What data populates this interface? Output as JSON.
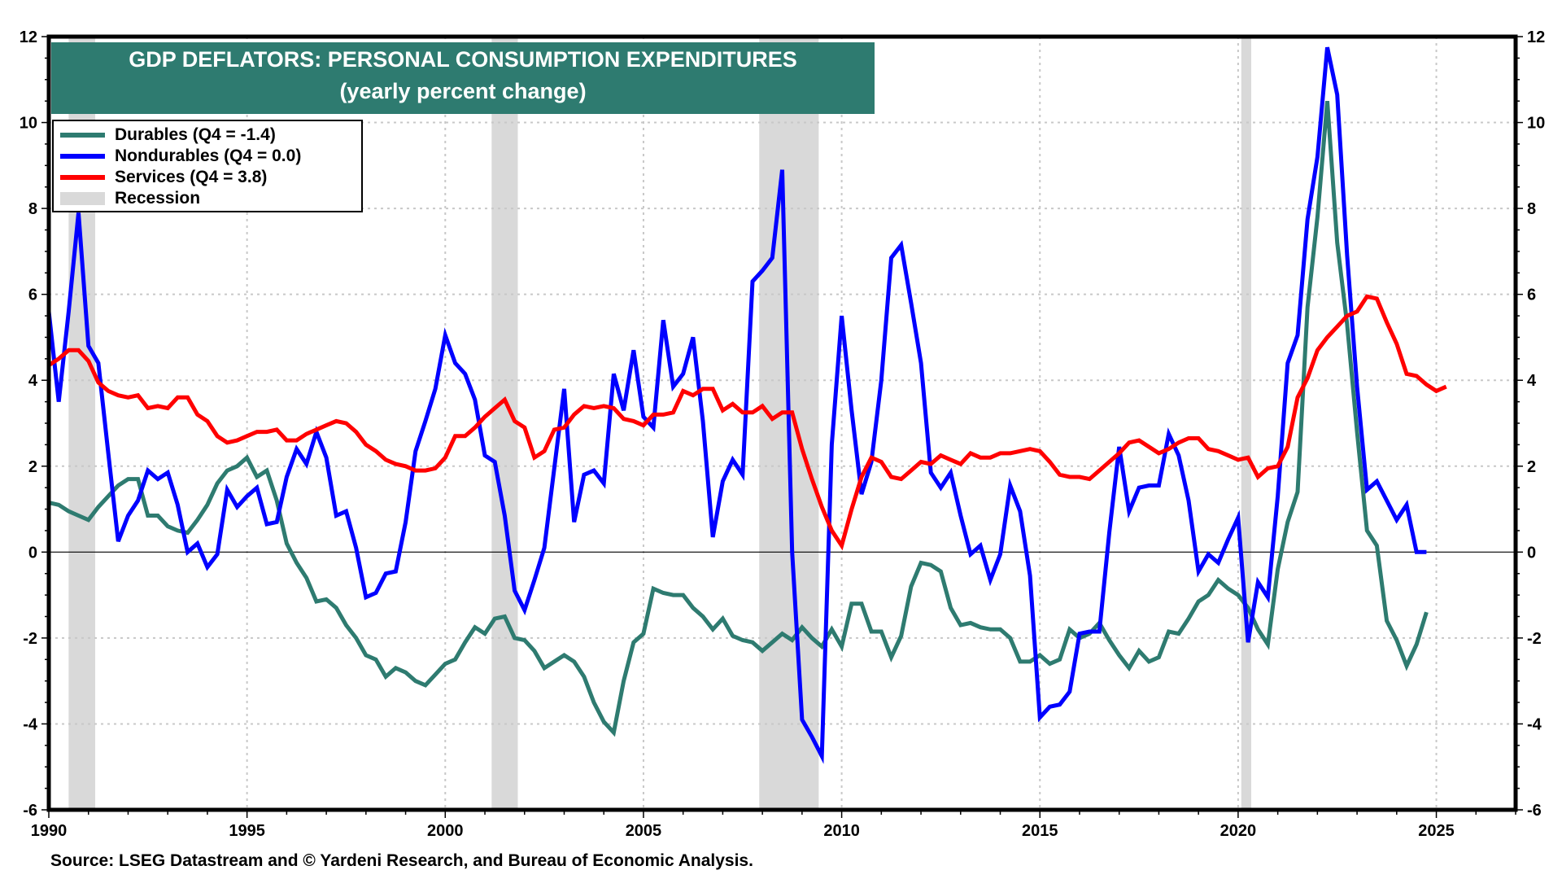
{
  "header": {
    "title": "GDP DEFLATORS: PERSONAL CONSUMPTION EXPENDITURES",
    "subtitle": "(yearly percent change)"
  },
  "legend": {
    "items": [
      {
        "label": "Durables  (Q4 = -1.4)",
        "color": "#2e7b70",
        "kind": "line"
      },
      {
        "label": "Nondurables  (Q4 = 0.0)",
        "color": "#0000ff",
        "kind": "line"
      },
      {
        "label": "Services (Q4 = 3.8)",
        "color": "#ff0000",
        "kind": "line"
      },
      {
        "label": "Recession",
        "color": "#d9d9d9",
        "kind": "band"
      }
    ]
  },
  "source": "Source: LSEG Datastream and © Yardeni Research, and Bureau of Economic Analysis.",
  "chart_data": {
    "type": "line",
    "title": "GDP DEFLATORS: PERSONAL CONSUMPTION EXPENDITURES",
    "subtitle": "(yearly percent change)",
    "xlabel": "",
    "ylabel": "",
    "frequency": "quarterly",
    "x_start": 1990.0,
    "x_step": 0.25,
    "xlim": [
      1990,
      2027
    ],
    "ylim": [
      -6,
      12
    ],
    "x_ticks": [
      1990,
      1995,
      2000,
      2005,
      2010,
      2015,
      2020,
      2025
    ],
    "x_tick_labels": [
      "1990",
      "1995",
      "2000",
      "2005",
      "2010",
      "2015",
      "2020",
      "2025"
    ],
    "y_ticks": [
      -6,
      -4,
      -2,
      0,
      2,
      4,
      6,
      8,
      10,
      12
    ],
    "y_tick_labels": [
      "-6",
      "-4",
      "-2",
      "0",
      "2",
      "4",
      "6",
      "8",
      "10",
      "12"
    ],
    "grid": true,
    "legend_position": "top-left",
    "recessions": [
      [
        1990.5,
        1991.17
      ],
      [
        2001.17,
        2001.83
      ],
      [
        2007.92,
        2009.42
      ],
      [
        2020.08,
        2020.33
      ]
    ],
    "series": [
      {
        "name": "Durables",
        "legend": "Durables  (Q4 = -1.4)",
        "color": "#2e7b70",
        "values": [
          1.15,
          1.1,
          0.95,
          0.85,
          0.75,
          1.05,
          1.3,
          1.55,
          1.7,
          1.7,
          0.85,
          0.85,
          0.6,
          0.5,
          0.45,
          0.75,
          1.1,
          1.6,
          1.9,
          2.0,
          2.2,
          1.75,
          1.9,
          1.2,
          0.2,
          -0.25,
          -0.6,
          -1.15,
          -1.1,
          -1.3,
          -1.7,
          -2.0,
          -2.4,
          -2.5,
          -2.9,
          -2.7,
          -2.8,
          -3.0,
          -3.1,
          -2.85,
          -2.6,
          -2.5,
          -2.1,
          -1.75,
          -1.9,
          -1.55,
          -1.5,
          -2.0,
          -2.05,
          -2.3,
          -2.7,
          -2.55,
          -2.4,
          -2.55,
          -2.9,
          -3.5,
          -3.95,
          -4.2,
          -3.0,
          -2.1,
          -1.9,
          -0.85,
          -0.95,
          -1.0,
          -1.0,
          -1.3,
          -1.5,
          -1.8,
          -1.55,
          -1.95,
          -2.05,
          -2.1,
          -2.3,
          -2.1,
          -1.9,
          -2.05,
          -1.75,
          -2.0,
          -2.2,
          -1.8,
          -2.2,
          -1.2,
          -1.2,
          -1.85,
          -1.85,
          -2.45,
          -1.95,
          -0.8,
          -0.25,
          -0.3,
          -0.45,
          -1.3,
          -1.7,
          -1.65,
          -1.75,
          -1.8,
          -1.8,
          -2.0,
          -2.55,
          -2.55,
          -2.4,
          -2.6,
          -2.5,
          -1.8,
          -2.0,
          -1.9,
          -1.65,
          -2.05,
          -2.4,
          -2.7,
          -2.3,
          -2.55,
          -2.45,
          -1.85,
          -1.9,
          -1.55,
          -1.15,
          -1.0,
          -0.65,
          -0.85,
          -1.0,
          -1.3,
          -1.8,
          -2.15,
          -0.4,
          0.7,
          1.4,
          5.7,
          7.8,
          10.5,
          7.2,
          5.3,
          2.8,
          0.5,
          0.15,
          -1.6,
          -2.05,
          -2.65,
          -2.15,
          -1.4
        ]
      },
      {
        "name": "Nondurables",
        "legend": "Nondurables  (Q4 = 0.0)",
        "color": "#0000ff",
        "values": [
          5.6,
          3.5,
          5.6,
          7.9,
          4.8,
          4.4,
          2.3,
          0.25,
          0.85,
          1.2,
          1.9,
          1.7,
          1.85,
          1.1,
          0.0,
          0.2,
          -0.35,
          -0.05,
          1.45,
          1.05,
          1.3,
          1.5,
          0.65,
          0.7,
          1.75,
          2.4,
          2.05,
          2.8,
          2.2,
          0.85,
          0.95,
          0.1,
          -1.05,
          -0.95,
          -0.5,
          -0.45,
          0.7,
          2.35,
          3.05,
          3.8,
          5.05,
          4.4,
          4.15,
          3.55,
          2.25,
          2.1,
          0.85,
          -0.9,
          -1.35,
          -0.65,
          0.1,
          1.95,
          3.8,
          0.7,
          1.8,
          1.9,
          1.6,
          4.15,
          3.3,
          4.7,
          3.15,
          2.9,
          5.4,
          3.85,
          4.15,
          5.0,
          3.05,
          0.35,
          1.65,
          2.15,
          1.8,
          6.3,
          6.55,
          6.85,
          8.9,
          0.0,
          -3.9,
          -4.3,
          -4.75,
          2.5,
          5.5,
          3.3,
          1.35,
          2.1,
          4.0,
          6.85,
          7.15,
          5.8,
          4.4,
          1.85,
          1.5,
          1.85,
          0.85,
          -0.05,
          0.15,
          -0.65,
          -0.05,
          1.55,
          0.95,
          -0.55,
          -3.85,
          -3.6,
          -3.55,
          -3.25,
          -1.9,
          -1.85,
          -1.85,
          0.45,
          2.45,
          0.95,
          1.5,
          1.55,
          1.55,
          2.75,
          2.25,
          1.2,
          -0.45,
          -0.05,
          -0.25,
          0.3,
          0.8,
          -2.1,
          -0.7,
          -1.05,
          1.3,
          4.4,
          5.05,
          7.75,
          9.2,
          11.75,
          10.65,
          6.9,
          3.85,
          1.45,
          1.65,
          1.2,
          0.75,
          1.1,
          0.0,
          0.0
        ]
      },
      {
        "name": "Services",
        "legend": "Services (Q4 = 3.8)",
        "color": "#ff0000",
        "values": [
          4.35,
          4.5,
          4.7,
          4.7,
          4.45,
          3.95,
          3.75,
          3.65,
          3.6,
          3.65,
          3.35,
          3.4,
          3.35,
          3.6,
          3.6,
          3.2,
          3.05,
          2.7,
          2.55,
          2.6,
          2.7,
          2.8,
          2.8,
          2.85,
          2.6,
          2.6,
          2.75,
          2.85,
          2.95,
          3.05,
          3.0,
          2.8,
          2.5,
          2.35,
          2.15,
          2.05,
          2.0,
          1.9,
          1.9,
          1.95,
          2.2,
          2.7,
          2.7,
          2.9,
          3.15,
          3.35,
          3.55,
          3.05,
          2.9,
          2.2,
          2.35,
          2.85,
          2.9,
          3.2,
          3.4,
          3.35,
          3.4,
          3.35,
          3.1,
          3.05,
          2.95,
          3.2,
          3.2,
          3.25,
          3.75,
          3.65,
          3.8,
          3.8,
          3.3,
          3.45,
          3.25,
          3.25,
          3.4,
          3.1,
          3.25,
          3.25,
          2.4,
          1.7,
          1.05,
          0.5,
          0.15,
          1.0,
          1.75,
          2.2,
          2.1,
          1.75,
          1.7,
          1.9,
          2.1,
          2.05,
          2.25,
          2.15,
          2.05,
          2.3,
          2.2,
          2.2,
          2.3,
          2.3,
          2.35,
          2.4,
          2.35,
          2.1,
          1.8,
          1.75,
          1.75,
          1.7,
          1.9,
          2.1,
          2.3,
          2.55,
          2.6,
          2.45,
          2.3,
          2.4,
          2.55,
          2.65,
          2.65,
          2.4,
          2.35,
          2.25,
          2.15,
          2.2,
          1.75,
          1.95,
          2.0,
          2.45,
          3.6,
          4.05,
          4.7,
          5.0,
          5.25,
          5.5,
          5.6,
          5.95,
          5.9,
          5.35,
          4.85,
          4.15,
          4.1,
          3.9,
          3.75,
          3.85
        ]
      }
    ]
  }
}
